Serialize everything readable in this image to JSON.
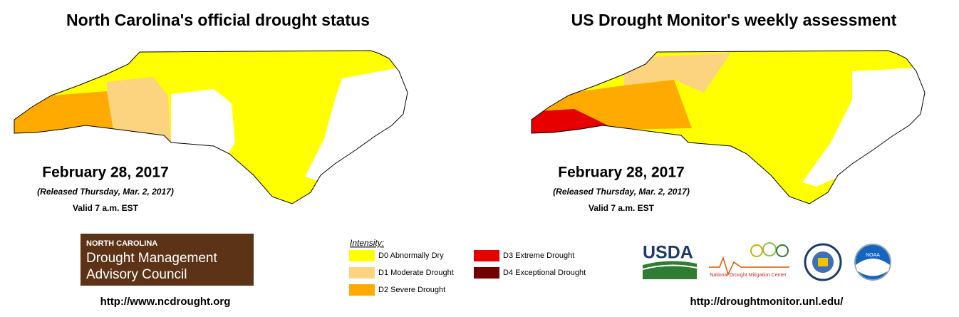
{
  "maps": [
    {
      "title": "North Carolina's official drought status",
      "date": "February 28, 2017",
      "released": "(Released Thursday, Mar. 2, 2017)",
      "valid": "Valid 7 a.m. EST"
    },
    {
      "title": "US Drought Monitor's weekly assessment",
      "date": "February 28, 2017",
      "released": "(Released Thursday, Mar. 2, 2017)",
      "valid": "Valid 7 a.m. EST"
    }
  ],
  "council_logo": {
    "line1": "NORTH CAROLINA",
    "line2": "Drought Management",
    "line3": "Advisory Council"
  },
  "legend": {
    "title": "Intensity:",
    "items": [
      {
        "label": "D0 Abnormally Dry",
        "color": "#ffff00"
      },
      {
        "label": "D1 Moderate Drought",
        "color": "#fcd37f"
      },
      {
        "label": "D2 Severe Drought",
        "color": "#ffaa00"
      },
      {
        "label": "D3 Extreme Drought",
        "color": "#e60000"
      },
      {
        "label": "D4 Exceptional Drought",
        "color": "#730000"
      }
    ]
  },
  "partner_logos": {
    "usda": "USDA",
    "ndmc": "National Drought Mitigation Center",
    "noaa": "NOAA"
  },
  "links": {
    "left": "http://www.ncdrought.org",
    "right": "http://droughtmonitor.unl.edu/"
  }
}
